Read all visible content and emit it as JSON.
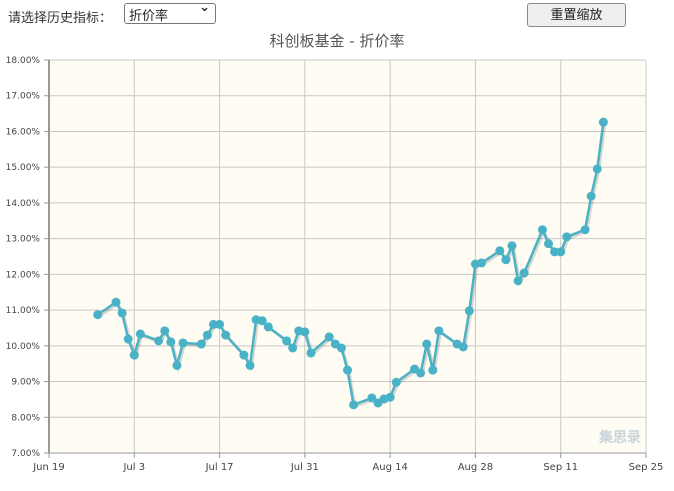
{
  "controls": {
    "select_label": "请选择历史指标：",
    "select_value": "折价率",
    "reset_button": "重置缩放"
  },
  "watermark": "集思录",
  "chart_data": {
    "type": "line",
    "title": "科创板基金 - 折价率",
    "xlabel": "",
    "ylabel": "",
    "x_ticks": [
      "Jun 19",
      "Jul 3",
      "Jul 17",
      "Jul 31",
      "Aug 14",
      "Aug 28",
      "Sep 11",
      "Sep 25"
    ],
    "y_ticks": [
      "7.00%",
      "8.00%",
      "9.00%",
      "10.00%",
      "11.00%",
      "12.00%",
      "13.00%",
      "14.00%",
      "15.00%",
      "16.00%",
      "17.00%",
      "18.00%"
    ],
    "ylim": [
      7,
      18
    ],
    "xlim": [
      "2019-06-19",
      "2019-09-25"
    ],
    "grid": true,
    "colors": {
      "line": "#4ab2c6",
      "plot_bg": "#fffcf3",
      "grid": "#c8c8c8"
    },
    "x": [
      "2019-06-27",
      "2019-06-30",
      "2019-07-01",
      "2019-07-02",
      "2019-07-03",
      "2019-07-04",
      "2019-07-07",
      "2019-07-08",
      "2019-07-09",
      "2019-07-10",
      "2019-07-11",
      "2019-07-14",
      "2019-07-15",
      "2019-07-16",
      "2019-07-17",
      "2019-07-18",
      "2019-07-21",
      "2019-07-22",
      "2019-07-23",
      "2019-07-24",
      "2019-07-25",
      "2019-07-28",
      "2019-07-29",
      "2019-07-30",
      "2019-07-31",
      "2019-08-01",
      "2019-08-04",
      "2019-08-05",
      "2019-08-06",
      "2019-08-07",
      "2019-08-08",
      "2019-08-11",
      "2019-08-12",
      "2019-08-13",
      "2019-08-14",
      "2019-08-15",
      "2019-08-18",
      "2019-08-19",
      "2019-08-20",
      "2019-08-21",
      "2019-08-22",
      "2019-08-25",
      "2019-08-26",
      "2019-08-27",
      "2019-08-28",
      "2019-08-29",
      "2019-09-01",
      "2019-09-02",
      "2019-09-03",
      "2019-09-04",
      "2019-09-05",
      "2019-09-08",
      "2019-09-09",
      "2019-09-10",
      "2019-09-11",
      "2019-09-12",
      "2019-09-15",
      "2019-09-16",
      "2019-09-17",
      "2019-09-18"
    ],
    "values": [
      10.87,
      11.22,
      10.92,
      10.19,
      9.74,
      10.33,
      10.14,
      10.42,
      10.11,
      9.45,
      10.08,
      10.05,
      10.3,
      10.6,
      10.6,
      10.3,
      9.74,
      9.45,
      10.73,
      10.7,
      10.53,
      10.14,
      9.94,
      10.42,
      10.39,
      9.8,
      10.25,
      10.05,
      9.94,
      9.32,
      8.35,
      8.54,
      8.4,
      8.51,
      8.56,
      8.98,
      9.35,
      9.24,
      10.05,
      9.32,
      10.42,
      10.05,
      9.97,
      10.98,
      12.29,
      12.32,
      12.66,
      12.41,
      12.8,
      11.82,
      12.04,
      13.25,
      12.86,
      12.63,
      12.63,
      13.05,
      13.25,
      14.19,
      14.95,
      16.26
    ]
  }
}
